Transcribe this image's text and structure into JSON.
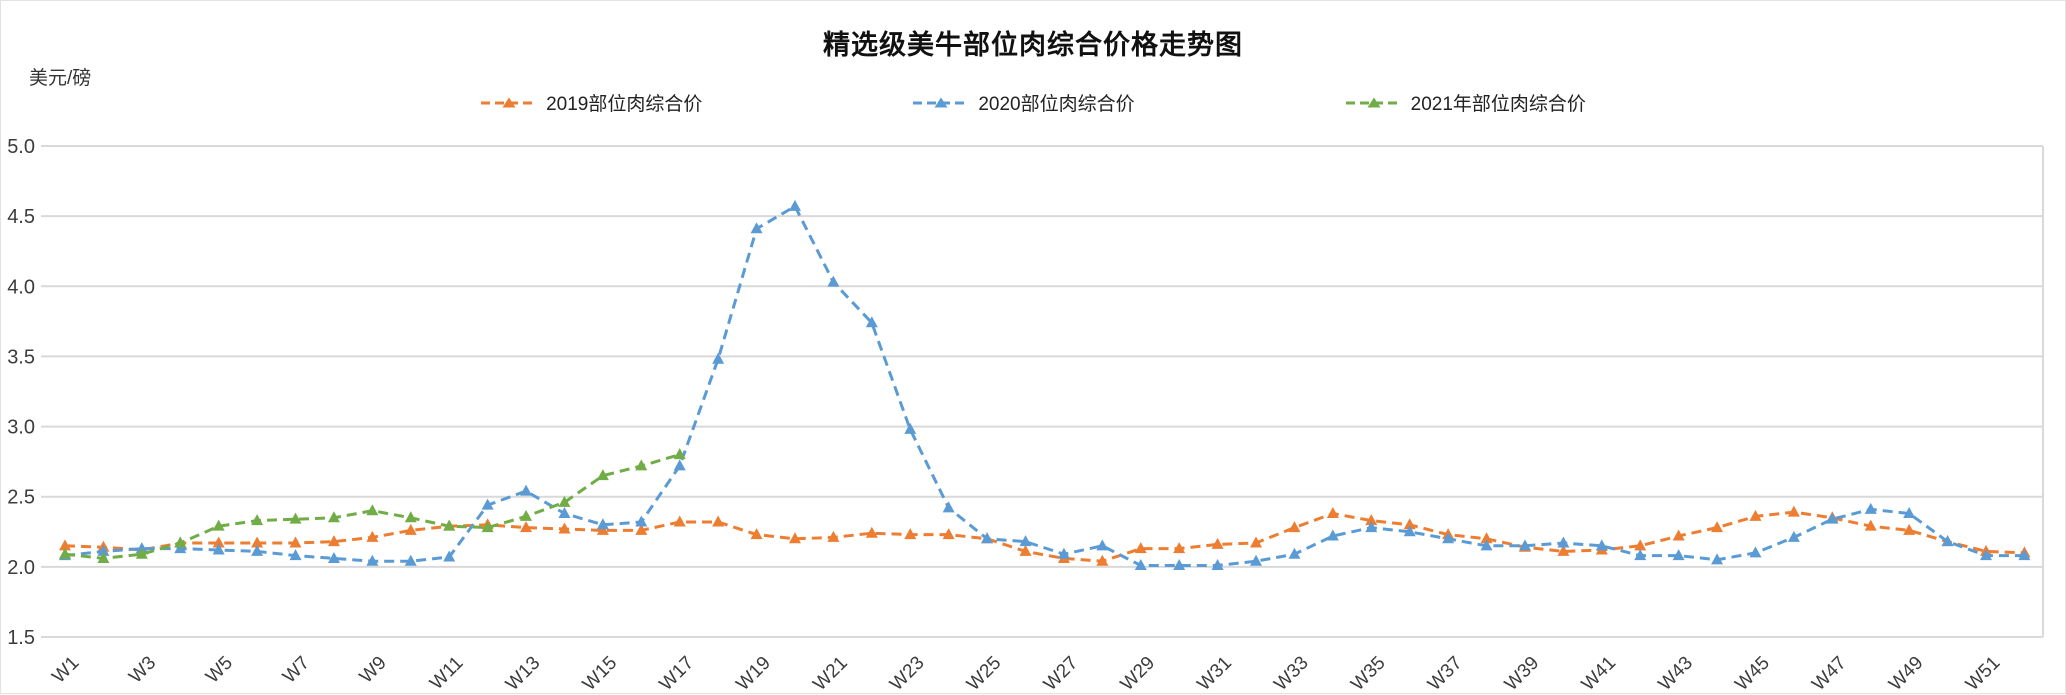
{
  "title": "精选级美牛部位肉综合价格走势图",
  "y_axis": {
    "unit": "美元/磅",
    "tick_labels": [
      "5.0",
      "4.5",
      "4.0",
      "3.5",
      "3.0",
      "2.5",
      "2.0",
      "1.5"
    ]
  },
  "x_axis": {
    "tick_labels": [
      "W1",
      "W3",
      "W5",
      "W7",
      "W9",
      "W11",
      "W13",
      "W15",
      "W17",
      "W19",
      "W21",
      "W23",
      "W25",
      "W27",
      "W29",
      "W31",
      "W33",
      "W35",
      "W37",
      "W39",
      "W41",
      "W43",
      "W45",
      "W47",
      "W49",
      "W51"
    ]
  },
  "legend": {
    "items": [
      {
        "label": "2019部位肉综合价",
        "color": "#ED7D31"
      },
      {
        "label": "2020部位肉综合价",
        "color": "#5B9BD5"
      },
      {
        "label": "2021年部位肉综合价",
        "color": "#70AD47"
      }
    ]
  },
  "colors": {
    "grid": "#D9D9D9",
    "axis_text": "#3c3c3c",
    "series_2019": "#ED7D31",
    "series_2020": "#5B9BD5",
    "series_2021": "#70AD47"
  },
  "chart_data": {
    "type": "line",
    "title": "精选级美牛部位肉综合价格走势图",
    "xlabel": "",
    "ylabel": "美元/磅",
    "ylim": [
      1.5,
      5.0
    ],
    "y_tick_step": 0.5,
    "grid": true,
    "legend_position": "top",
    "line_style": "dashed",
    "marker": "triangle",
    "categories": [
      "W1",
      "W2",
      "W3",
      "W4",
      "W5",
      "W6",
      "W7",
      "W8",
      "W9",
      "W10",
      "W11",
      "W12",
      "W13",
      "W14",
      "W15",
      "W16",
      "W17",
      "W18",
      "W19",
      "W20",
      "W21",
      "W22",
      "W23",
      "W24",
      "W25",
      "W26",
      "W27",
      "W28",
      "W29",
      "W30",
      "W31",
      "W32",
      "W33",
      "W34",
      "W35",
      "W36",
      "W37",
      "W38",
      "W39",
      "W40",
      "W41",
      "W42",
      "W43",
      "W44",
      "W45",
      "W46",
      "W47",
      "W48",
      "W49",
      "W50",
      "W51",
      "W52"
    ],
    "series": [
      {
        "name": "2019部位肉综合价",
        "color": "#ED7D31",
        "values": [
          2.15,
          2.14,
          2.12,
          2.17,
          2.17,
          2.17,
          2.17,
          2.18,
          2.21,
          2.26,
          2.29,
          2.3,
          2.28,
          2.27,
          2.26,
          2.26,
          2.32,
          2.32,
          2.23,
          2.2,
          2.21,
          2.24,
          2.23,
          2.23,
          2.2,
          2.11,
          2.06,
          2.04,
          2.13,
          2.13,
          2.16,
          2.17,
          2.28,
          2.38,
          2.33,
          2.3,
          2.23,
          2.2,
          2.14,
          2.11,
          2.12,
          2.15,
          2.22,
          2.28,
          2.36,
          2.39,
          2.35,
          2.29,
          2.26,
          2.18,
          2.11,
          2.1
        ]
      },
      {
        "name": "2020部位肉综合价",
        "color": "#5B9BD5",
        "values": [
          2.08,
          2.11,
          2.13,
          2.13,
          2.12,
          2.11,
          2.08,
          2.06,
          2.04,
          2.04,
          2.07,
          2.44,
          2.54,
          2.38,
          2.3,
          2.32,
          2.72,
          3.48,
          4.41,
          4.57,
          4.03,
          3.74,
          2.98,
          2.42,
          2.2,
          2.18,
          2.09,
          2.15,
          2.01,
          2.01,
          2.01,
          2.04,
          2.09,
          2.22,
          2.28,
          2.25,
          2.2,
          2.15,
          2.15,
          2.17,
          2.15,
          2.08,
          2.08,
          2.05,
          2.1,
          2.21,
          2.34,
          2.41,
          2.38,
          2.18,
          2.08,
          2.08
        ]
      },
      {
        "name": "2021年部位肉综合价",
        "color": "#70AD47",
        "values": [
          2.09,
          2.06,
          2.09,
          2.17,
          2.29,
          2.33,
          2.34,
          2.35,
          2.4,
          2.35,
          2.29,
          2.28,
          2.36,
          2.46,
          2.65,
          2.72,
          2.8
        ]
      }
    ]
  }
}
